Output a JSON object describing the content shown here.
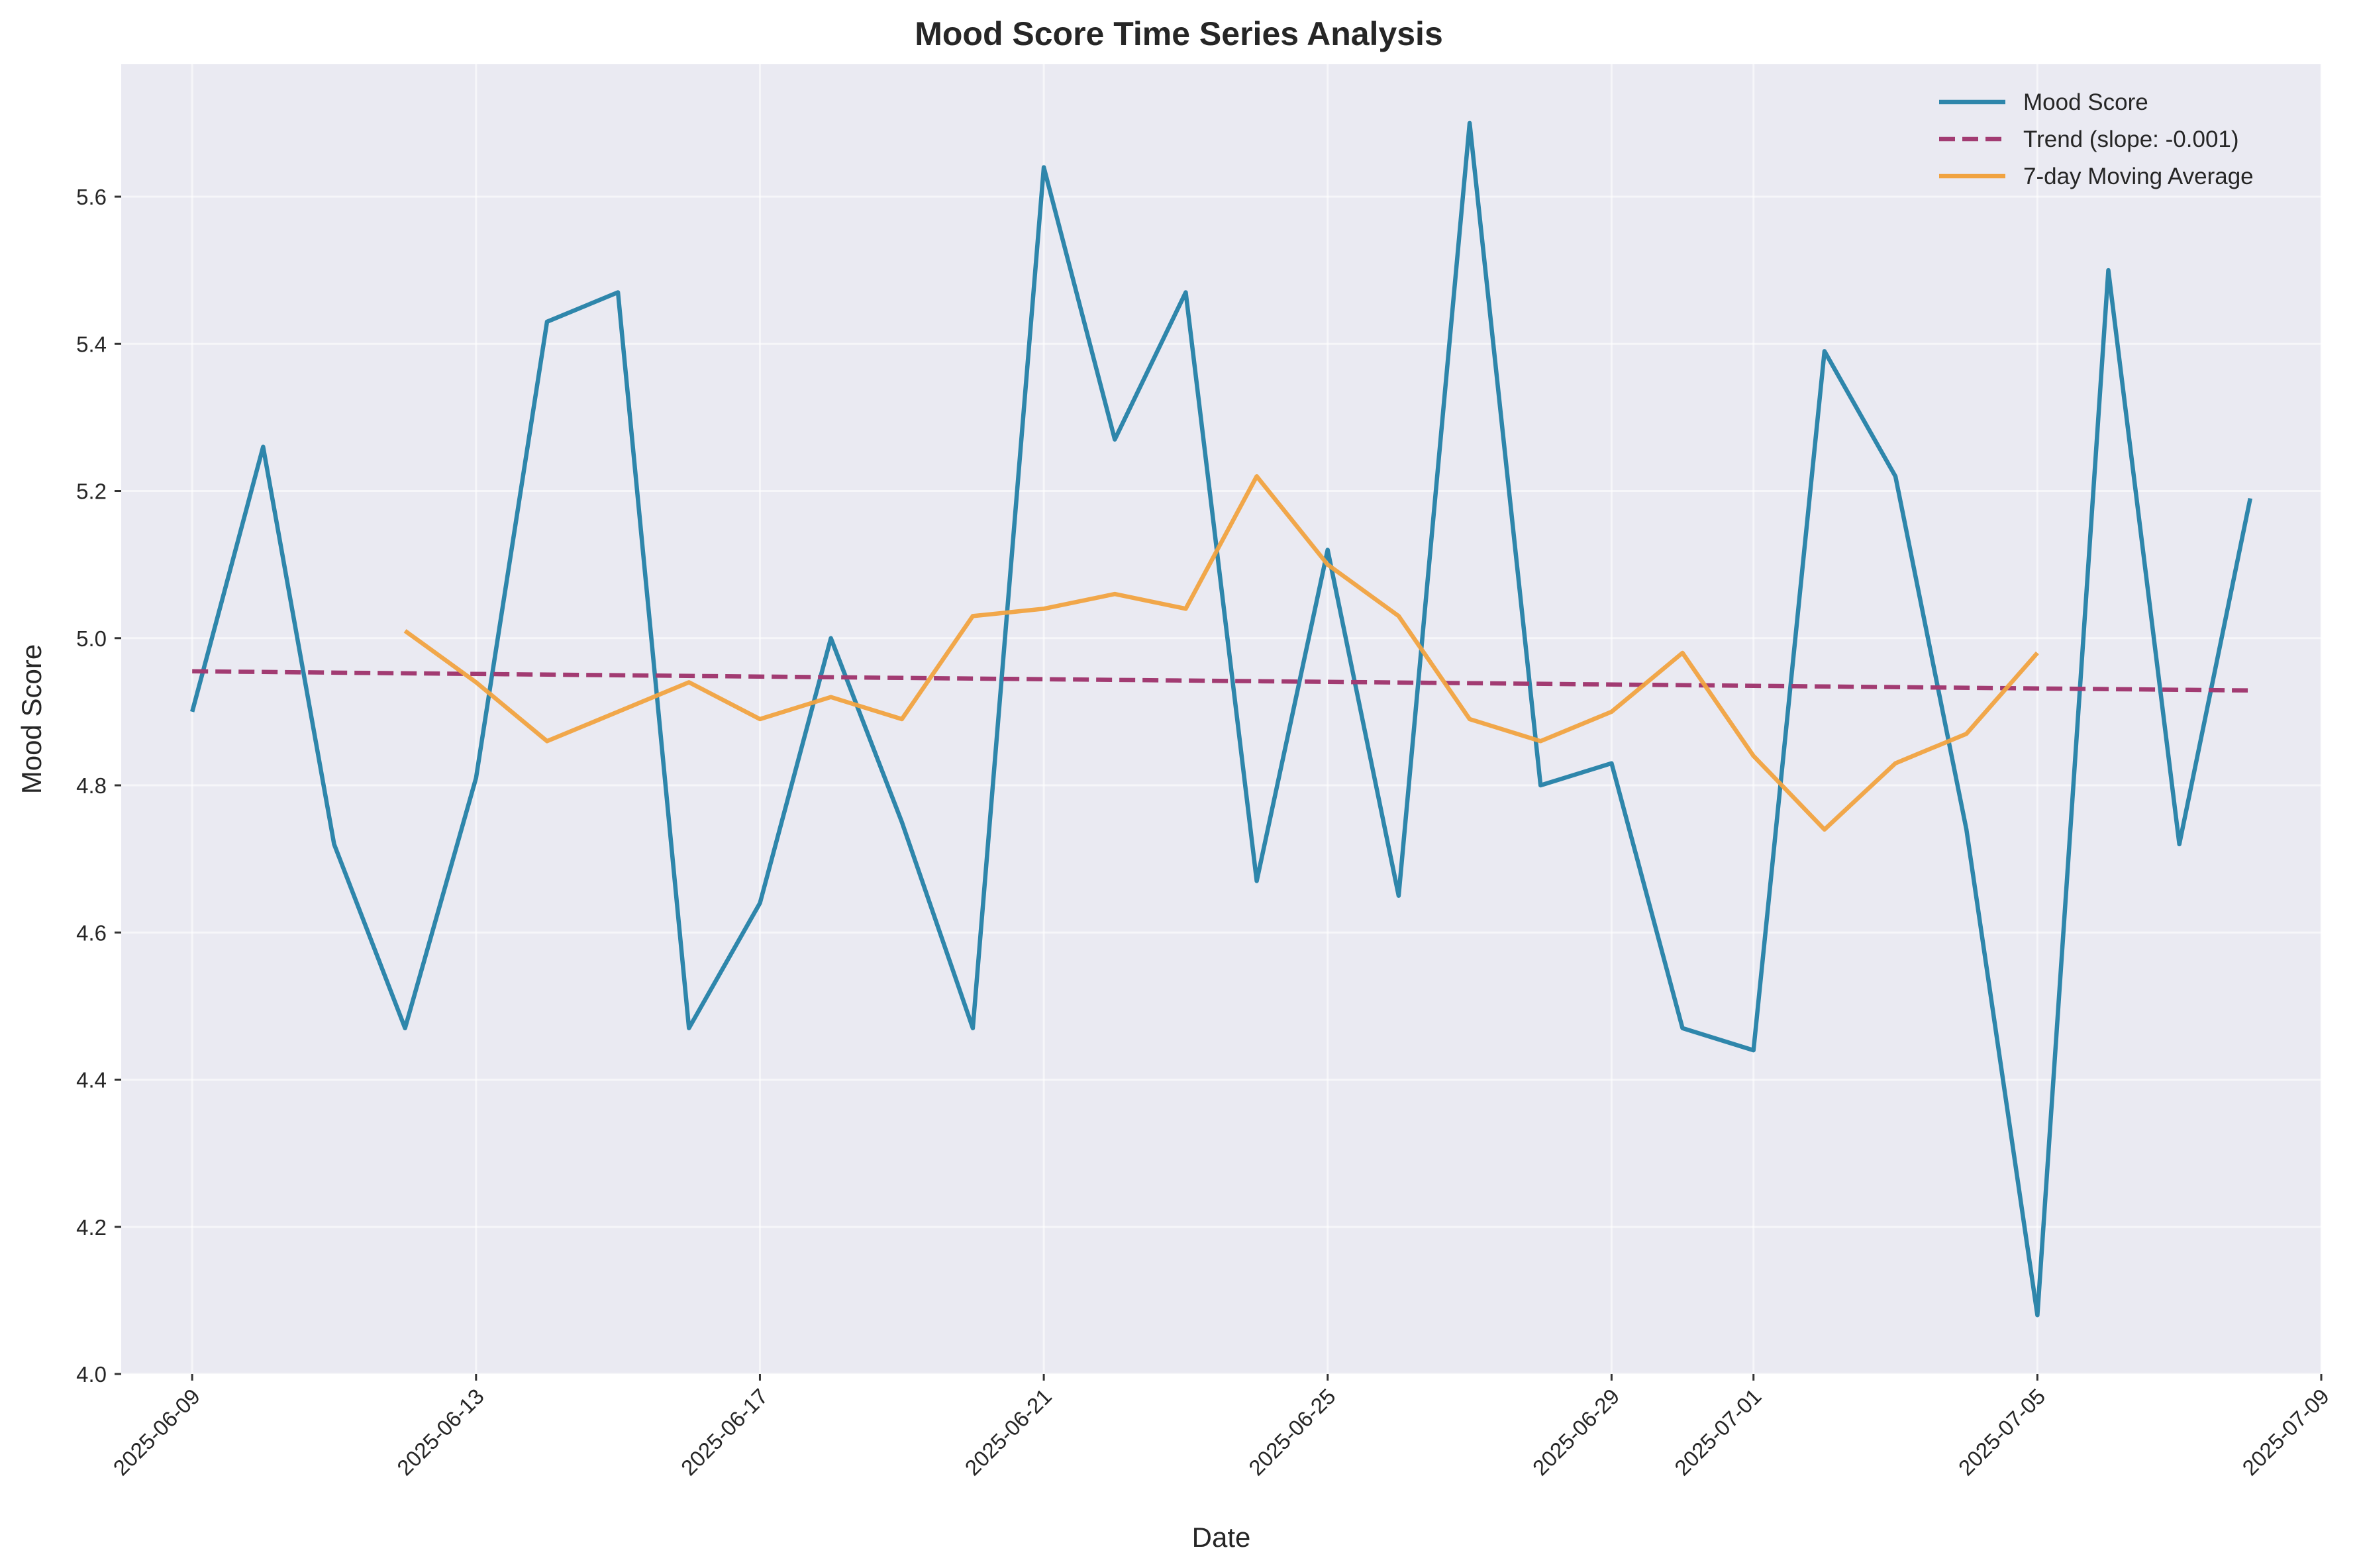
{
  "chart_data": {
    "type": "line",
    "title": "Mood Score Time Series Analysis",
    "xlabel": "Date",
    "ylabel": "Mood Score",
    "ylim": [
      4.0,
      5.78
    ],
    "xlim": [
      "2025-06-08",
      "2025-07-09"
    ],
    "y_ticks": [
      4.0,
      4.2,
      4.4,
      4.6,
      4.8,
      5.0,
      5.2,
      5.4,
      5.6
    ],
    "x_ticks": [
      "2025-06-09",
      "2025-06-13",
      "2025-06-17",
      "2025-06-21",
      "2025-06-25",
      "2025-06-29",
      "2025-07-01",
      "2025-07-05",
      "2025-07-09"
    ],
    "grid": true,
    "legend_position": "top-right",
    "colors": {
      "background": "#eaeaf2",
      "mood": "#2e86ab",
      "trend": "#a23b72",
      "ma": "#f1a340"
    },
    "series": [
      {
        "name": "Mood Score",
        "style": "solid",
        "x": [
          "2025-06-09",
          "2025-06-10",
          "2025-06-11",
          "2025-06-12",
          "2025-06-13",
          "2025-06-14",
          "2025-06-15",
          "2025-06-16",
          "2025-06-17",
          "2025-06-18",
          "2025-06-19",
          "2025-06-20",
          "2025-06-21",
          "2025-06-22",
          "2025-06-23",
          "2025-06-24",
          "2025-06-25",
          "2025-06-26",
          "2025-06-27",
          "2025-06-28",
          "2025-06-29",
          "2025-06-30",
          "2025-07-01",
          "2025-07-02",
          "2025-07-03",
          "2025-07-04",
          "2025-07-05",
          "2025-07-06",
          "2025-07-07",
          "2025-07-08"
        ],
        "values": [
          4.9,
          5.26,
          4.72,
          4.47,
          4.81,
          5.43,
          5.47,
          4.47,
          4.64,
          5.0,
          4.75,
          4.47,
          5.64,
          5.27,
          5.47,
          4.67,
          5.12,
          4.65,
          5.7,
          4.8,
          4.83,
          4.47,
          4.44,
          5.39,
          5.22,
          4.74,
          4.08,
          5.5,
          4.72,
          5.19
        ]
      },
      {
        "name": "Trend (slope: -0.001)",
        "style": "dashed",
        "x": [
          "2025-06-09",
          "2025-07-08"
        ],
        "values": [
          4.955,
          4.929
        ]
      },
      {
        "name": "7-day Moving Average",
        "style": "solid",
        "x": [
          "2025-06-12",
          "2025-06-13",
          "2025-06-14",
          "2025-06-15",
          "2025-06-16",
          "2025-06-17",
          "2025-06-18",
          "2025-06-19",
          "2025-06-20",
          "2025-06-21",
          "2025-06-22",
          "2025-06-23",
          "2025-06-24",
          "2025-06-25",
          "2025-06-26",
          "2025-06-27",
          "2025-06-28",
          "2025-06-29",
          "2025-06-30",
          "2025-07-01",
          "2025-07-02",
          "2025-07-03",
          "2025-07-04",
          "2025-07-05"
        ],
        "values": [
          5.01,
          4.94,
          4.86,
          4.9,
          4.94,
          4.89,
          4.92,
          4.89,
          5.03,
          5.04,
          5.06,
          5.04,
          5.22,
          5.1,
          5.03,
          4.89,
          4.86,
          4.9,
          4.98,
          4.84,
          4.74,
          4.83,
          4.87,
          4.98
        ]
      }
    ]
  }
}
